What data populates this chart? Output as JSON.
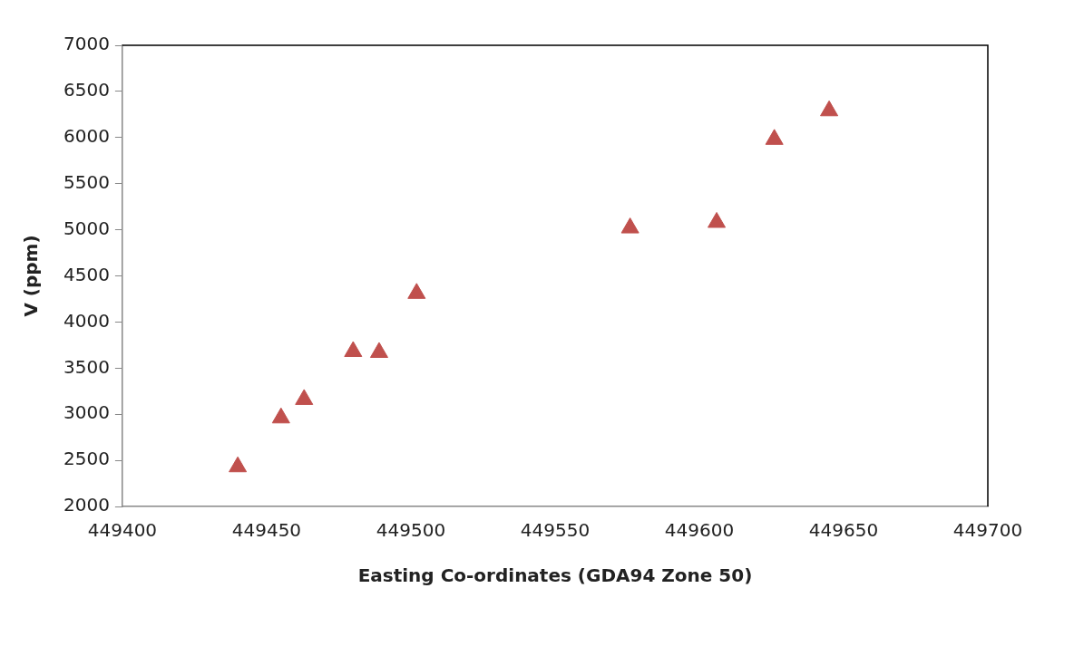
{
  "chart_data": {
    "type": "scatter",
    "xlabel": "Easting Co-ordinates (GDA94 Zone 50)",
    "ylabel": "V (ppm)",
    "x": [
      449440,
      449455,
      449463,
      449480,
      449489,
      449502,
      449576,
      449606,
      449626,
      449645
    ],
    "values": [
      2430,
      2960,
      3160,
      3680,
      3670,
      4310,
      5020,
      5080,
      5980,
      6290
    ],
    "color": "#c0504d",
    "marker": "triangle",
    "xlim": [
      449400,
      449700
    ],
    "xticks": [
      449400,
      449450,
      449500,
      449550,
      449600,
      449650,
      449700
    ],
    "ylim": [
      2000,
      7000
    ],
    "yticks": [
      2000,
      2500,
      3000,
      3500,
      4000,
      4500,
      5000,
      5500,
      6000,
      6500,
      7000
    ],
    "grid": false,
    "legend": false
  }
}
